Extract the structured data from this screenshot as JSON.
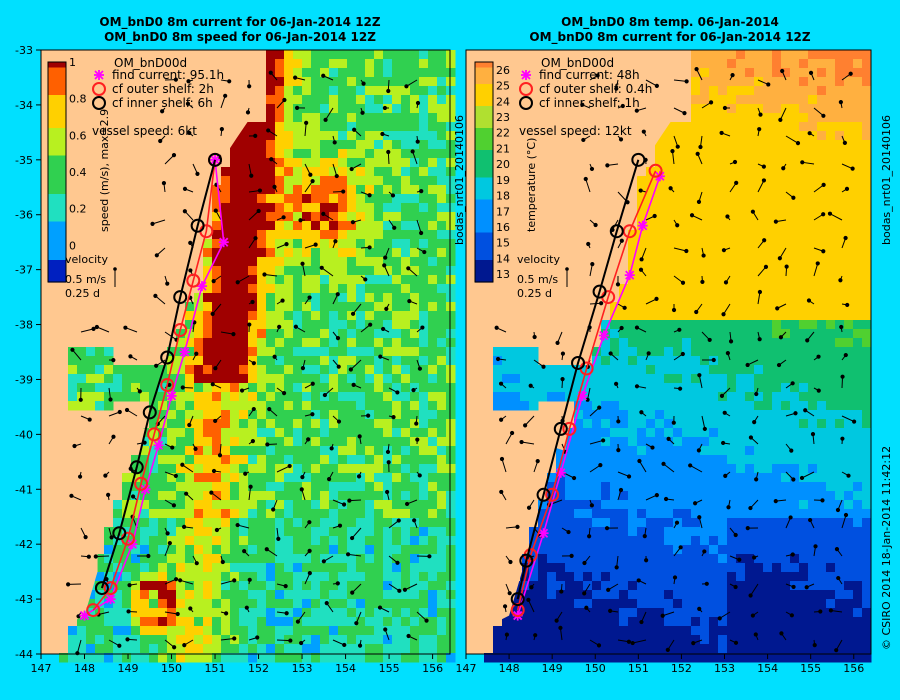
{
  "titles": {
    "left_line1": "OM_bnD0 8m current for 06-Jan-2014 12Z",
    "left_line2": "OM_bnD0 8m speed for 06-Jan-2014 12Z",
    "right_line1": "OM_bnD0 8m temp. 06-Jan-2014",
    "right_line2": "OM_bnD0 8m current for 06-Jan-2014 12Z"
  },
  "side_labels": {
    "left_panel_id": "bodas_nrt01_20140106",
    "right_panel_id": "bodas_nrt01_20140106",
    "credit": "© CSIRO 2014   18-Jan-2014 11:42:12"
  },
  "colors": {
    "background": "#00e0ff",
    "land": "#ffc890",
    "find_current": "#ff00ff",
    "cf_outer": "#ff2020",
    "cf_inner": "#000000"
  },
  "chart_data": [
    {
      "type": "heatmap",
      "variable": "speed",
      "x_axis": {
        "ticks": [
          147,
          148,
          149,
          150,
          151,
          152,
          153,
          154,
          155,
          156
        ],
        "range": [
          147,
          156.4
        ]
      },
      "y_axis": {
        "ticks": [
          -33,
          -34,
          -35,
          -36,
          -37,
          -38,
          -39,
          -40,
          -41,
          -42,
          -43,
          -44
        ],
        "range": [
          -44,
          -33
        ]
      },
      "colorbar": {
        "label": "speed (m/s), max=2.9",
        "ticks": [
          "1",
          "0.8",
          "0.6",
          "0.4",
          "0.2",
          "0"
        ],
        "range": [
          -0.2,
          1
        ]
      },
      "legend": {
        "title": "OM_bnD00d",
        "items": [
          {
            "label": "find current: 95.1h",
            "marker": "asterisk",
            "color": "#ff00ff"
          },
          {
            "label": "cf outer shelf: 2h",
            "marker": "circle",
            "color": "#ff2020"
          },
          {
            "label": "cf inner shelf: 6h",
            "marker": "circle",
            "color": "#000000"
          }
        ],
        "vessel_speed": "vessel speed: 6kt"
      },
      "velocity_key": {
        "title": "velocity",
        "speed": "0.5 m/s",
        "time": "0.25 d"
      },
      "series": [
        {
          "name": "find current",
          "lon": [
            151.0,
            151.2,
            150.7,
            150.3,
            150.0,
            149.7,
            149.4,
            149.1,
            148.6,
            148.0
          ],
          "lat": [
            -35.0,
            -36.5,
            -37.3,
            -38.5,
            -39.3,
            -40.2,
            -41.0,
            -42.0,
            -43.0,
            -43.3
          ]
        },
        {
          "name": "cf outer shelf",
          "lon": [
            151.0,
            150.8,
            150.5,
            150.2,
            149.9,
            149.6,
            149.3,
            149.0,
            148.6,
            148.2
          ],
          "lat": [
            -35.0,
            -36.3,
            -37.2,
            -38.1,
            -39.1,
            -40.0,
            -40.9,
            -41.9,
            -42.8,
            -43.2
          ]
        },
        {
          "name": "cf inner shelf",
          "lon": [
            151.0,
            150.6,
            150.2,
            149.9,
            149.5,
            149.2,
            148.8,
            148.4
          ],
          "lat": [
            -35.0,
            -36.2,
            -37.5,
            -38.6,
            -39.6,
            -40.6,
            -41.8,
            -42.8
          ]
        }
      ]
    },
    {
      "type": "heatmap",
      "variable": "temperature",
      "x_axis": {
        "ticks": [
          147,
          148,
          149,
          150,
          151,
          152,
          153,
          154,
          155,
          156
        ],
        "range": [
          147,
          156.4
        ]
      },
      "y_axis": {
        "range": [
          -44,
          -33
        ]
      },
      "colorbar": {
        "label": "temperature (°C)",
        "ticks": [
          "26",
          "25",
          "24",
          "23",
          "22",
          "21",
          "20",
          "19",
          "18",
          "17",
          "16",
          "15",
          "14",
          "13"
        ],
        "range": [
          12.5,
          26.5
        ]
      },
      "legend": {
        "title": "OM_bnD00d",
        "items": [
          {
            "label": "find current: 48h",
            "marker": "asterisk",
            "color": "#ff00ff"
          },
          {
            "label": "cf outer shelf: 0.4h",
            "marker": "circle",
            "color": "#ff2020"
          },
          {
            "label": "cf inner shelf: 1h",
            "marker": "circle",
            "color": "#000000"
          }
        ],
        "vessel_speed": "vessel speed: 12kt"
      },
      "velocity_key": {
        "title": "velocity",
        "speed": "0.5 m/s",
        "time": "0.25 d"
      },
      "series": [
        {
          "name": "find current",
          "lon": [
            151.5,
            151.1,
            150.8,
            150.2,
            149.7,
            149.2,
            148.8,
            148.2
          ],
          "lat": [
            -35.3,
            -36.2,
            -37.1,
            -38.2,
            -39.3,
            -40.7,
            -41.8,
            -43.3
          ]
        },
        {
          "name": "cf outer shelf",
          "lon": [
            151.4,
            150.8,
            150.3,
            149.8,
            149.4,
            149.0,
            148.5,
            148.2
          ],
          "lat": [
            -35.2,
            -36.3,
            -37.5,
            -38.8,
            -39.9,
            -41.1,
            -42.2,
            -43.2
          ]
        },
        {
          "name": "cf inner shelf",
          "lon": [
            151.0,
            150.5,
            150.1,
            149.6,
            149.2,
            148.8,
            148.4,
            148.2
          ],
          "lat": [
            -35.0,
            -36.3,
            -37.4,
            -38.7,
            -39.9,
            -41.1,
            -42.3,
            -43.0
          ]
        }
      ]
    }
  ]
}
